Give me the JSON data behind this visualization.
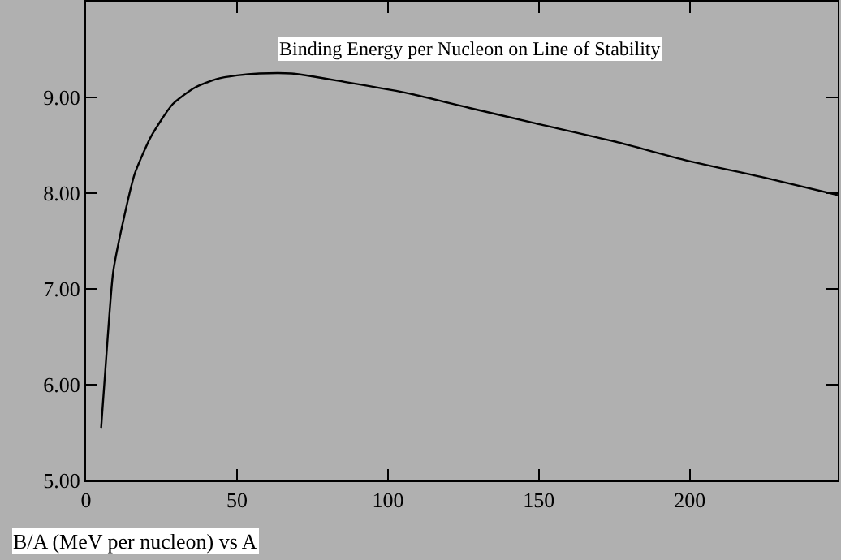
{
  "chart_data": {
    "type": "line",
    "title": "Binding Energy per Nucleon on Line of Stability",
    "xlabel": "B/A (MeV per nucleon) vs A",
    "x": [
      5.0,
      7.2,
      9.0,
      12.6,
      16.1,
      21.5,
      28.7,
      35.9,
      43,
      50,
      57.4,
      68,
      86,
      105.7,
      127,
      148.8,
      175,
      199,
      225,
      249
    ],
    "series": [
      {
        "color": "#000000",
        "values": [
          5.55,
          6.51,
          7.18,
          7.75,
          8.2,
          8.59,
          8.93,
          9.1,
          9.19,
          9.23,
          9.25,
          9.25,
          9.16,
          9.05,
          8.89,
          8.73,
          8.54,
          8.34,
          8.16,
          7.98
        ]
      }
    ],
    "xlim": [
      0,
      249
    ],
    "ylim": [
      5,
      10
    ],
    "xticks": [
      0,
      50,
      100,
      150,
      200
    ],
    "yticks": [
      {
        "value": 5,
        "label": "5.00"
      },
      {
        "value": 6,
        "label": "6.00"
      },
      {
        "value": 7,
        "label": "7.00"
      },
      {
        "value": 8,
        "label": "8.00"
      },
      {
        "value": 9,
        "label": "9.00"
      }
    ],
    "grid": false,
    "marker": "none",
    "line_style": "solid"
  }
}
